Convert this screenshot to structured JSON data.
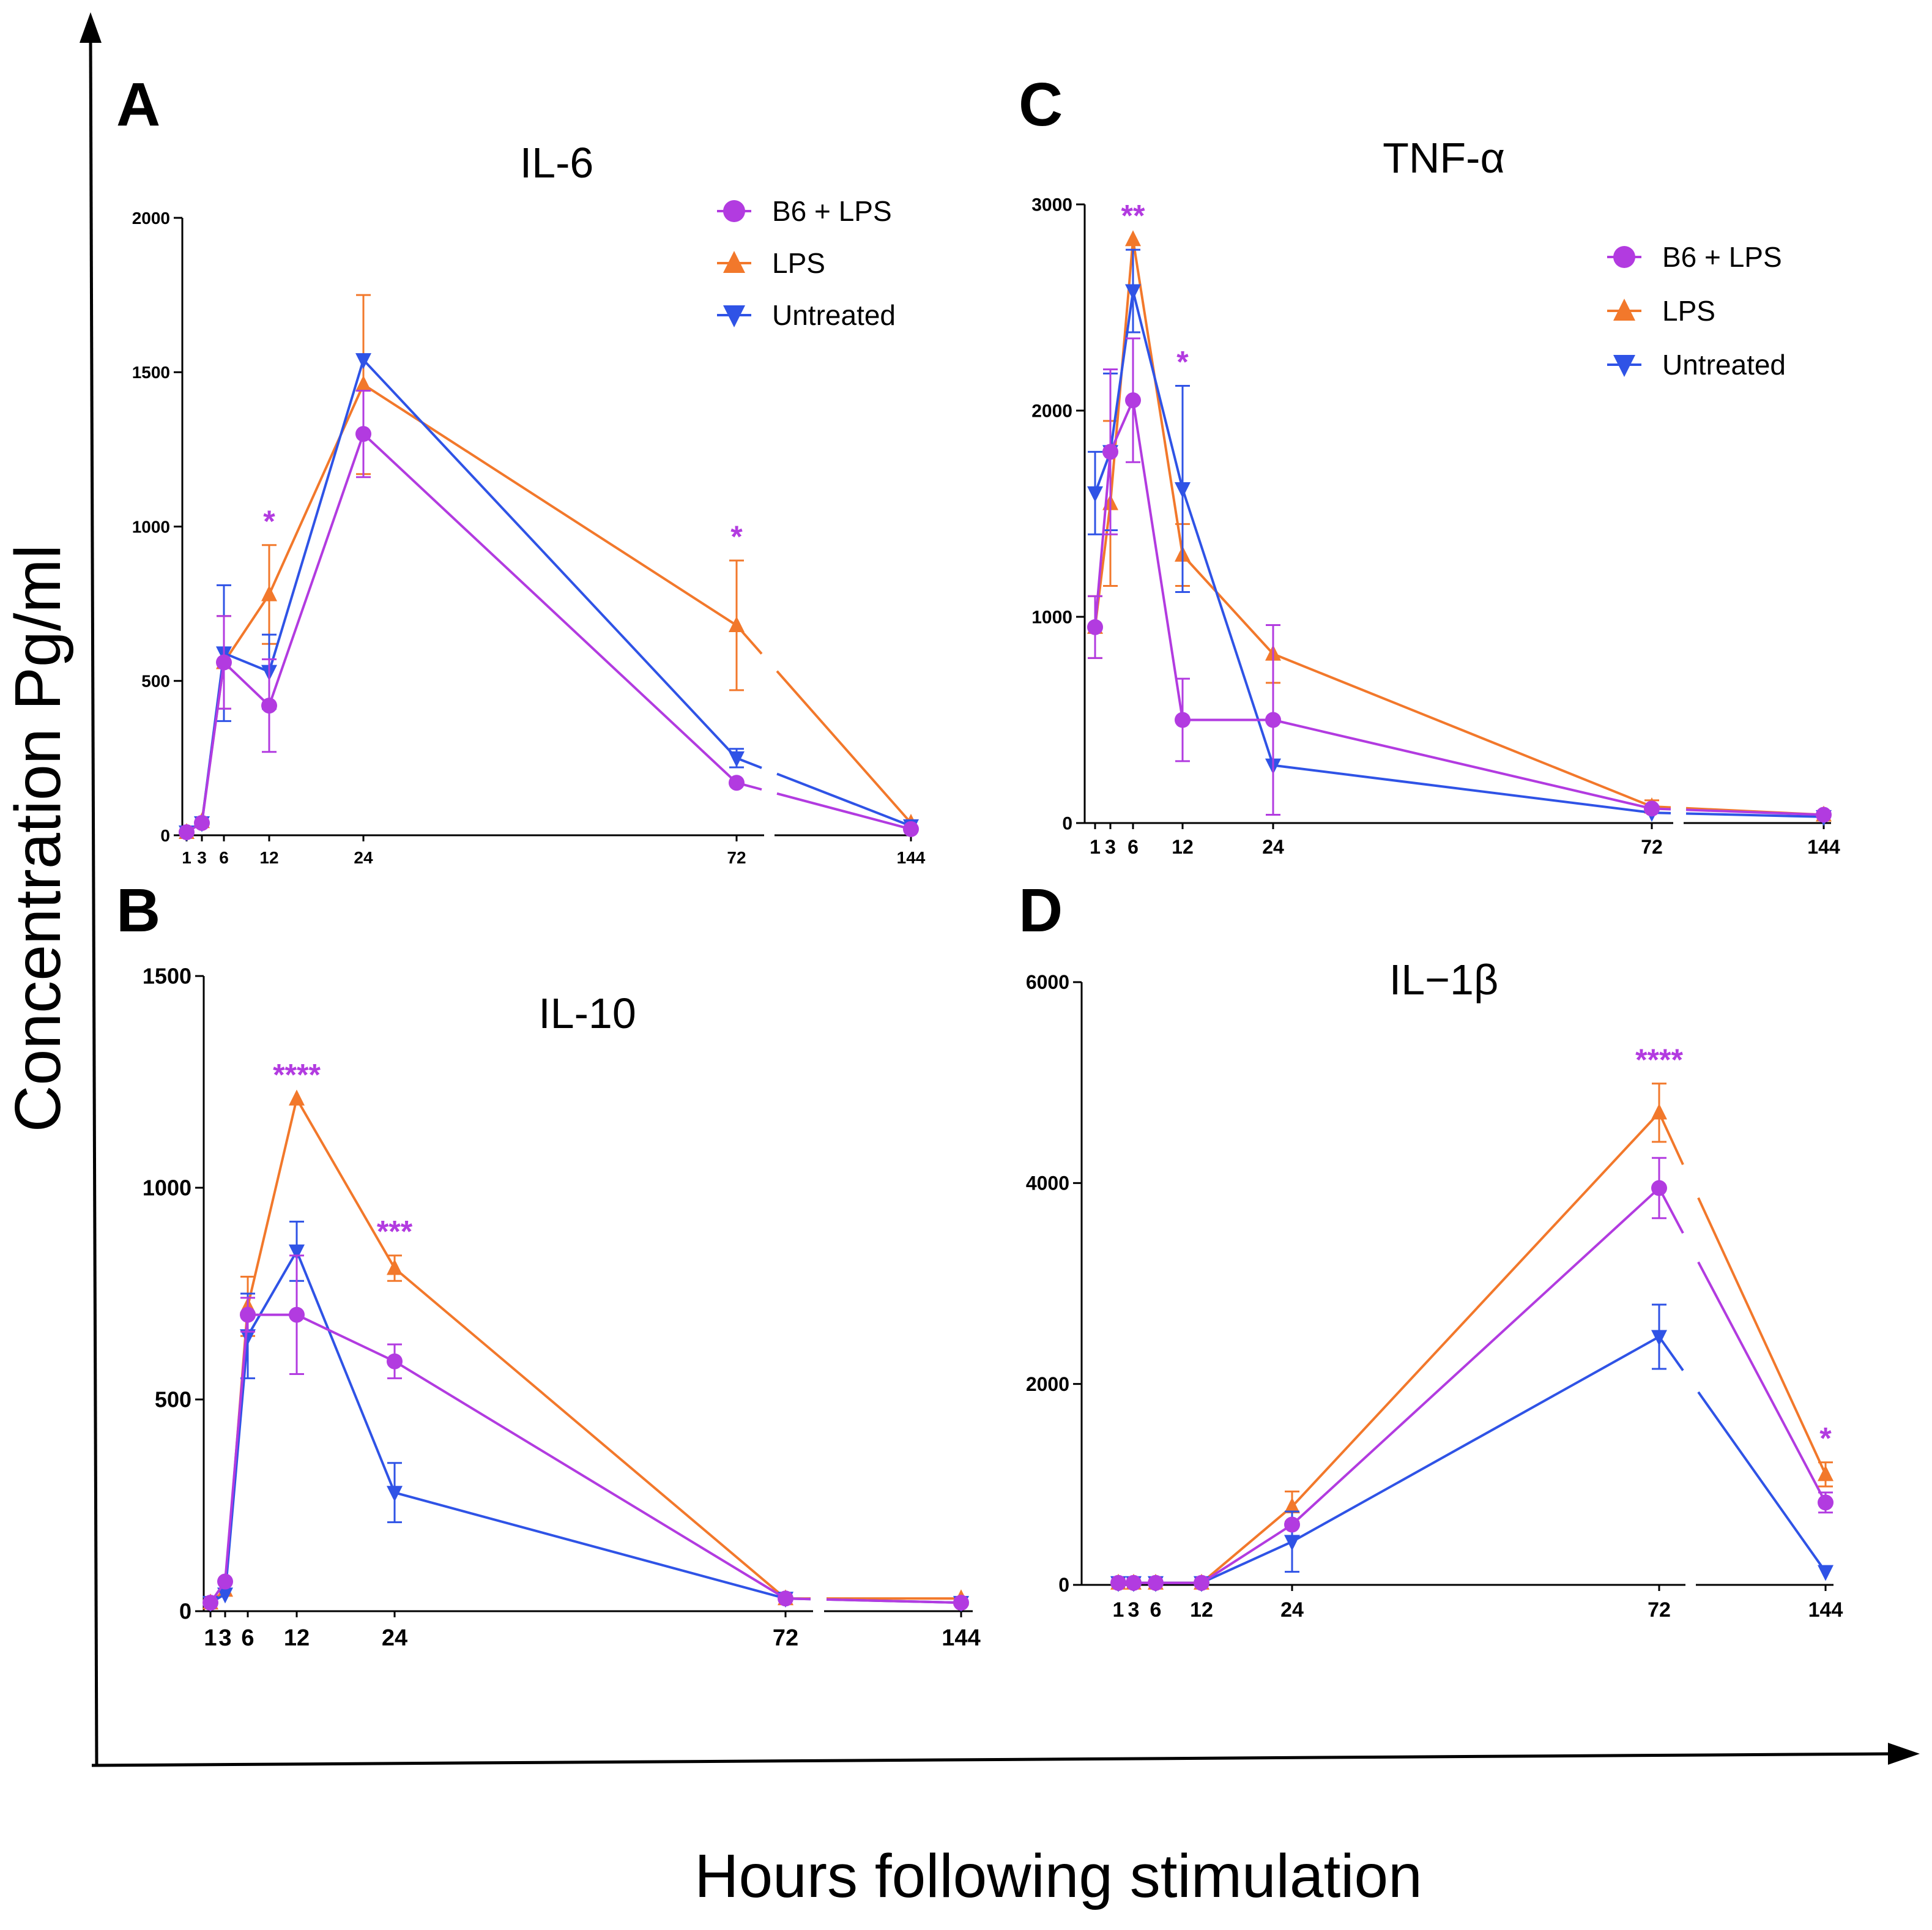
{
  "figure": {
    "ylabel": "Concentration Pg/ml",
    "xlabel": "Hours following stimulation"
  },
  "series_styles": [
    {
      "name": "B6 + LPS",
      "color": "#b23be0",
      "marker": "circle"
    },
    {
      "name": "LPS",
      "color": "#f2782b",
      "marker": "triangle-up"
    },
    {
      "name": "Untreated",
      "color": "#2f53e6",
      "marker": "triangle-down"
    }
  ],
  "chart_data": [
    {
      "panel": "A",
      "type": "line",
      "title": "IL-6",
      "x": [
        1,
        3,
        6,
        12,
        24,
        72,
        144
      ],
      "x_tick_labels": [
        "1",
        "3",
        "6",
        "12",
        "24",
        "72",
        "144"
      ],
      "y_ticks": [
        0,
        500,
        1000,
        1500,
        2000
      ],
      "ylim": [
        0,
        2000
      ],
      "axis_break_after": 72,
      "legend": [
        "B6 + LPS",
        "LPS",
        "Untreated"
      ],
      "series": [
        {
          "name": "B6 + LPS",
          "values": [
            10,
            40,
            560,
            420,
            1300,
            170,
            20
          ],
          "errors": [
            0,
            0,
            150,
            150,
            140,
            0,
            0
          ]
        },
        {
          "name": "LPS",
          "values": [
            10,
            45,
            560,
            780,
            1460,
            680,
            40
          ],
          "errors": [
            0,
            0,
            150,
            160,
            290,
            210,
            0
          ]
        },
        {
          "name": "Untreated",
          "values": [
            10,
            40,
            590,
            530,
            1540,
            250,
            30
          ],
          "errors": [
            0,
            0,
            220,
            120,
            0,
            30,
            0
          ]
        }
      ],
      "annotations": [
        {
          "x": 12,
          "text": "*"
        },
        {
          "x": 72,
          "text": "*"
        }
      ]
    },
    {
      "panel": "B",
      "type": "line",
      "title": "IL-10",
      "x": [
        1,
        3,
        6,
        12,
        24,
        72,
        144
      ],
      "x_tick_labels": [
        "1",
        "3",
        "6",
        "12",
        "24",
        "72",
        "144"
      ],
      "y_ticks": [
        0,
        500,
        1000,
        1500
      ],
      "ylim": [
        0,
        1500
      ],
      "axis_break_after": 72,
      "series": [
        {
          "name": "B6 + LPS",
          "values": [
            20,
            70,
            700,
            700,
            590,
            30,
            20
          ],
          "errors": [
            0,
            0,
            40,
            140,
            40,
            0,
            0
          ]
        },
        {
          "name": "LPS",
          "values": [
            20,
            50,
            720,
            1210,
            810,
            30,
            30
          ],
          "errors": [
            0,
            0,
            70,
            0,
            30,
            0,
            0
          ]
        },
        {
          "name": "Untreated",
          "values": [
            20,
            40,
            650,
            850,
            280,
            30,
            20
          ],
          "errors": [
            0,
            0,
            100,
            70,
            70,
            0,
            0
          ]
        }
      ],
      "annotations": [
        {
          "x": 12,
          "text": "****"
        },
        {
          "x": 24,
          "text": "***"
        }
      ]
    },
    {
      "panel": "C",
      "type": "line",
      "title": "TNF-α",
      "x": [
        1,
        3,
        6,
        12,
        24,
        72,
        144
      ],
      "x_tick_labels": [
        "1",
        "3",
        "6",
        "12",
        "24",
        "72",
        "144"
      ],
      "y_ticks": [
        0,
        1000,
        2000,
        3000
      ],
      "ylim": [
        0,
        3000
      ],
      "axis_break_after": 72,
      "legend": [
        "B6 + LPS",
        "LPS",
        "Untreated"
      ],
      "series": [
        {
          "name": "B6 + LPS",
          "values": [
            950,
            1800,
            2050,
            500,
            500,
            70,
            40
          ],
          "errors": [
            150,
            400,
            300,
            200,
            460,
            0,
            0
          ]
        },
        {
          "name": "LPS",
          "values": [
            950,
            1550,
            2830,
            1300,
            820,
            80,
            40
          ],
          "errors": [
            150,
            400,
            0,
            150,
            140,
            30,
            0
          ]
        },
        {
          "name": "Untreated",
          "values": [
            1600,
            1800,
            2580,
            1620,
            280,
            50,
            30
          ],
          "errors": [
            200,
            380,
            200,
            500,
            0,
            0,
            0
          ]
        }
      ],
      "annotations": [
        {
          "x": 6,
          "text": "**"
        },
        {
          "x": 12,
          "text": "*"
        }
      ]
    },
    {
      "panel": "D",
      "type": "line",
      "title": "IL−1β",
      "x": [
        1,
        3,
        6,
        12,
        24,
        72,
        144
      ],
      "x_tick_labels": [
        "1",
        "3",
        "6",
        "12",
        "24",
        "72",
        "144"
      ],
      "y_ticks": [
        0,
        2000,
        4000,
        6000
      ],
      "ylim": [
        0,
        6000
      ],
      "axis_break_after": 72,
      "series": [
        {
          "name": "B6 + LPS",
          "values": [
            20,
            20,
            20,
            20,
            600,
            3950,
            820
          ],
          "errors": [
            0,
            0,
            0,
            0,
            0,
            300,
            100
          ]
        },
        {
          "name": "LPS",
          "values": [
            20,
            20,
            20,
            20,
            780,
            4700,
            1100
          ],
          "errors": [
            0,
            0,
            0,
            0,
            150,
            290,
            120
          ]
        },
        {
          "name": "Untreated",
          "values": [
            20,
            20,
            20,
            20,
            430,
            2470,
            130
          ],
          "errors": [
            0,
            0,
            0,
            0,
            300,
            320,
            0
          ]
        }
      ],
      "annotations": [
        {
          "x": 72,
          "text": "****"
        },
        {
          "x": 144,
          "text": "*"
        }
      ]
    }
  ]
}
